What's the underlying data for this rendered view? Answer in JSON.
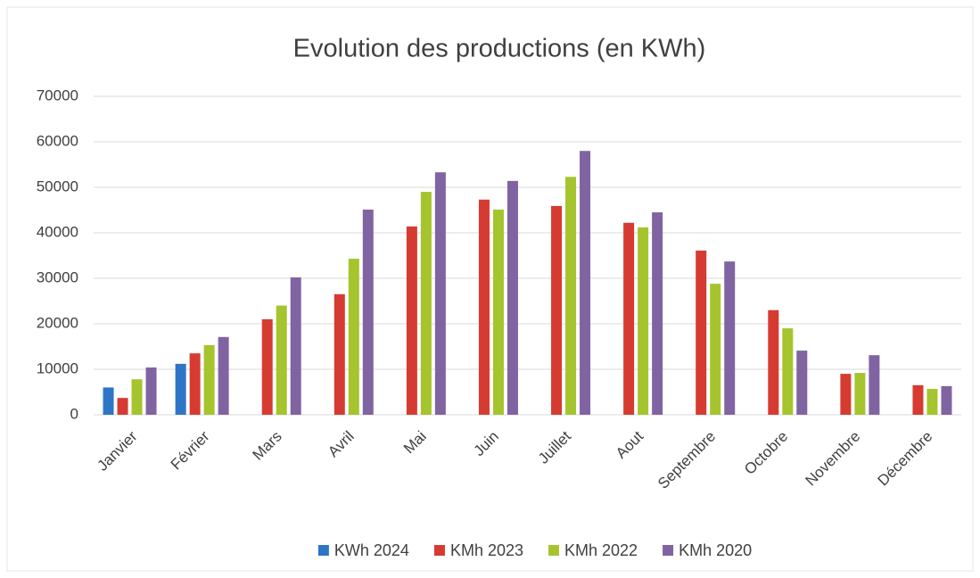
{
  "chart_data": {
    "type": "bar",
    "title": "Evolution des productions (en KWh)",
    "categories": [
      "Janvier",
      "Février",
      "Mars",
      "Avril",
      "Mai",
      "Juin",
      "Juillet",
      "Aout",
      "Septembre",
      "Octobre",
      "Novembre",
      "Décembre"
    ],
    "series": [
      {
        "name": "KWh 2024",
        "color": "#2e75c6",
        "values": [
          6000,
          11200,
          null,
          null,
          null,
          null,
          null,
          null,
          null,
          null,
          null,
          null
        ]
      },
      {
        "name": "KMh 2023",
        "color": "#d63b32",
        "values": [
          3700,
          13500,
          21000,
          26500,
          41400,
          47300,
          45900,
          42200,
          36100,
          23000,
          9000,
          6500
        ]
      },
      {
        "name": "KMh 2022",
        "color": "#a5c42d",
        "values": [
          7800,
          15300,
          24000,
          34300,
          49000,
          45100,
          52300,
          41200,
          28800,
          19000,
          9200,
          5700
        ]
      },
      {
        "name": "KMh 2020",
        "color": "#8064a2",
        "values": [
          10400,
          17100,
          30200,
          45100,
          53300,
          51400,
          58000,
          44500,
          33700,
          14100,
          13100,
          6300
        ]
      }
    ],
    "ylim": [
      0,
      70000
    ],
    "yticks": [
      0,
      10000,
      20000,
      30000,
      40000,
      50000,
      60000,
      70000
    ],
    "grid": true,
    "legend": "bottom"
  }
}
